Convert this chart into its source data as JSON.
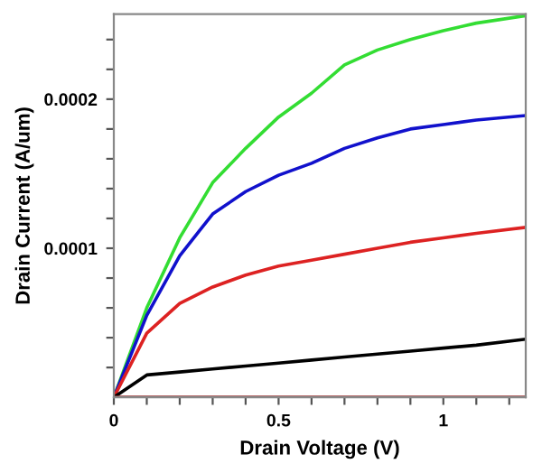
{
  "chart_data": {
    "type": "line",
    "xlabel": "Drain Voltage (V)",
    "ylabel": "Drain Current (A/um)",
    "xlim": [
      0,
      1.25
    ],
    "ylim": [
      0,
      0.000257
    ],
    "xticks": [
      0,
      {
        "value": 0.1,
        "label": null
      },
      {
        "value": 0.2,
        "label": null
      },
      {
        "value": 0.3,
        "label": null
      },
      {
        "value": 0.4,
        "label": null
      },
      0.5,
      {
        "value": 0.6,
        "label": null
      },
      {
        "value": 0.7,
        "label": null
      },
      {
        "value": 0.8,
        "label": null
      },
      {
        "value": 0.9,
        "label": null
      },
      1,
      {
        "value": 1.1,
        "label": null
      },
      {
        "value": 1.2,
        "label": null
      }
    ],
    "yticks": [
      {
        "value": 2e-05,
        "label": null
      },
      {
        "value": 4e-05,
        "label": null
      },
      {
        "value": 6e-05,
        "label": null
      },
      {
        "value": 8e-05,
        "label": null
      },
      {
        "value": 0.0001,
        "label": "0.0001"
      },
      {
        "value": 0.00012,
        "label": null
      },
      {
        "value": 0.00014,
        "label": null
      },
      {
        "value": 0.00016,
        "label": null
      },
      {
        "value": 0.00018,
        "label": null
      },
      {
        "value": 0.0002,
        "label": "0.0002"
      },
      {
        "value": 0.00022,
        "label": null
      },
      {
        "value": 0.00024,
        "label": null
      }
    ],
    "marker": "none",
    "line_style": "solid",
    "x": [
      0,
      0.1,
      0.2,
      0.3,
      0.4,
      0.5,
      0.6,
      0.7,
      0.8,
      0.9,
      1.0,
      1.1,
      1.25
    ],
    "series": [
      {
        "color": "#33dd33",
        "values": [
          0,
          6e-05,
          0.000107,
          0.000144,
          0.000167,
          0.000188,
          0.000204,
          0.000223,
          0.000233,
          0.00024,
          0.000246,
          0.000251,
          0.000256
        ]
      },
      {
        "color": "#1111cc",
        "values": [
          0,
          5.5e-05,
          9.5e-05,
          0.000123,
          0.000138,
          0.000149,
          0.000157,
          0.000167,
          0.000174,
          0.00018,
          0.000183,
          0.000186,
          0.000189
        ]
      },
      {
        "color": "#dd2222",
        "values": [
          0,
          4.3e-05,
          6.3e-05,
          7.4e-05,
          8.2e-05,
          8.8e-05,
          9.2e-05,
          9.6e-05,
          0.0001,
          0.000104,
          0.000107,
          0.00011,
          0.000114
        ]
      },
      {
        "color": "#000000",
        "values": [
          0,
          1.5e-05,
          1.7e-05,
          1.9e-05,
          2.1e-05,
          2.3e-05,
          2.5e-05,
          2.7e-05,
          2.9e-05,
          3.1e-05,
          3.3e-05,
          3.5e-05,
          3.9e-05
        ]
      },
      {
        "color": "#993333",
        "values": [
          0,
          0,
          0,
          0,
          0,
          0,
          0,
          0,
          0,
          0,
          0,
          0,
          0
        ]
      }
    ]
  }
}
